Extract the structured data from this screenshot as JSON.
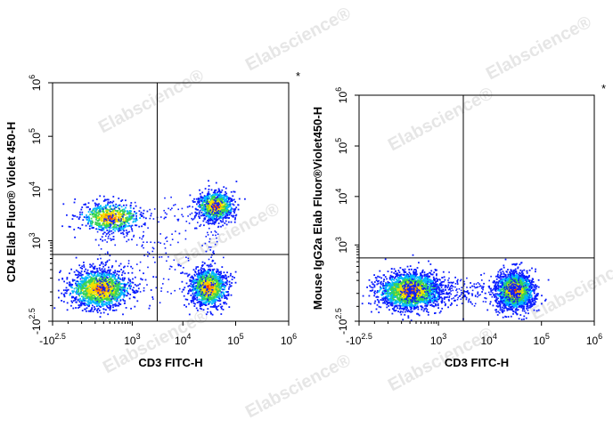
{
  "watermark": {
    "text": "Elabscience",
    "mark": "®"
  },
  "chart_data": [
    {
      "type": "scatter",
      "subtype": "flow-cytometry-density-plot",
      "xlabel": "CD3 FITC-H",
      "ylabel": "CD4 Elab Fluor® Violet 450-H",
      "xscale": "biexponential",
      "yscale": "biexponential",
      "xlim": [
        -316,
        1000000
      ],
      "ylim": [
        -316,
        1000000
      ],
      "x_ticks": [
        {
          "label": "-10",
          "sup": "2.5",
          "value": -316
        },
        {
          "label": "10",
          "sup": "3",
          "value": 1000
        },
        {
          "label": "10",
          "sup": "4",
          "value": 10000
        },
        {
          "label": "10",
          "sup": "5",
          "value": 100000
        },
        {
          "label": "10",
          "sup": "6",
          "value": 1000000
        }
      ],
      "y_ticks": [
        {
          "label": "-10",
          "sup": "2.5",
          "value": -316
        },
        {
          "label": "10",
          "sup": "3",
          "value": 1000
        },
        {
          "label": "10",
          "sup": "4",
          "value": 10000
        },
        {
          "label": "10",
          "sup": "5",
          "value": 100000
        },
        {
          "label": "10",
          "sup": "6",
          "value": 1000000
        }
      ],
      "quadrant_gate": {
        "x": 3200,
        "y": 500
      },
      "asterisk": "*",
      "populations": [
        {
          "name": "CD3- CD4-",
          "x": 150,
          "y": 20,
          "weight": 0.36
        },
        {
          "name": "CD3+ CD4-",
          "x": 30000,
          "y": 30,
          "weight": 0.28
        },
        {
          "name": "CD3+ CD4+",
          "x": 40000,
          "y": 5000,
          "weight": 0.2
        },
        {
          "name": "CD3- CD4+",
          "x": 300,
          "y": 3000,
          "weight": 0.16
        }
      ]
    },
    {
      "type": "scatter",
      "subtype": "flow-cytometry-density-plot",
      "xlabel": "CD3 FITC-H",
      "ylabel": "Mouse IgG2a Elab Fluor®Violet450-H",
      "xscale": "biexponential",
      "yscale": "biexponential",
      "xlim": [
        -316,
        1000000
      ],
      "ylim": [
        -316,
        1000000
      ],
      "x_ticks": [
        {
          "label": "-10",
          "sup": "2.5",
          "value": -316
        },
        {
          "label": "10",
          "sup": "3",
          "value": 1000
        },
        {
          "label": "10",
          "sup": "4",
          "value": 10000
        },
        {
          "label": "10",
          "sup": "5",
          "value": 100000
        },
        {
          "label": "10",
          "sup": "6",
          "value": 1000000
        }
      ],
      "y_ticks": [
        {
          "label": "-10",
          "sup": "2.5",
          "value": -316
        },
        {
          "label": "10",
          "sup": "3",
          "value": 1000
        },
        {
          "label": "10",
          "sup": "4",
          "value": 10000
        },
        {
          "label": "10",
          "sup": "5",
          "value": 100000
        },
        {
          "label": "10",
          "sup": "6",
          "value": 1000000
        }
      ],
      "quadrant_gate": {
        "x": 3200,
        "y": 500
      },
      "asterisk": "*",
      "populations": [
        {
          "name": "CD3-",
          "x": 200,
          "y": 20,
          "weight": 0.52
        },
        {
          "name": "CD3+",
          "x": 30000,
          "y": 20,
          "weight": 0.48
        }
      ]
    }
  ]
}
